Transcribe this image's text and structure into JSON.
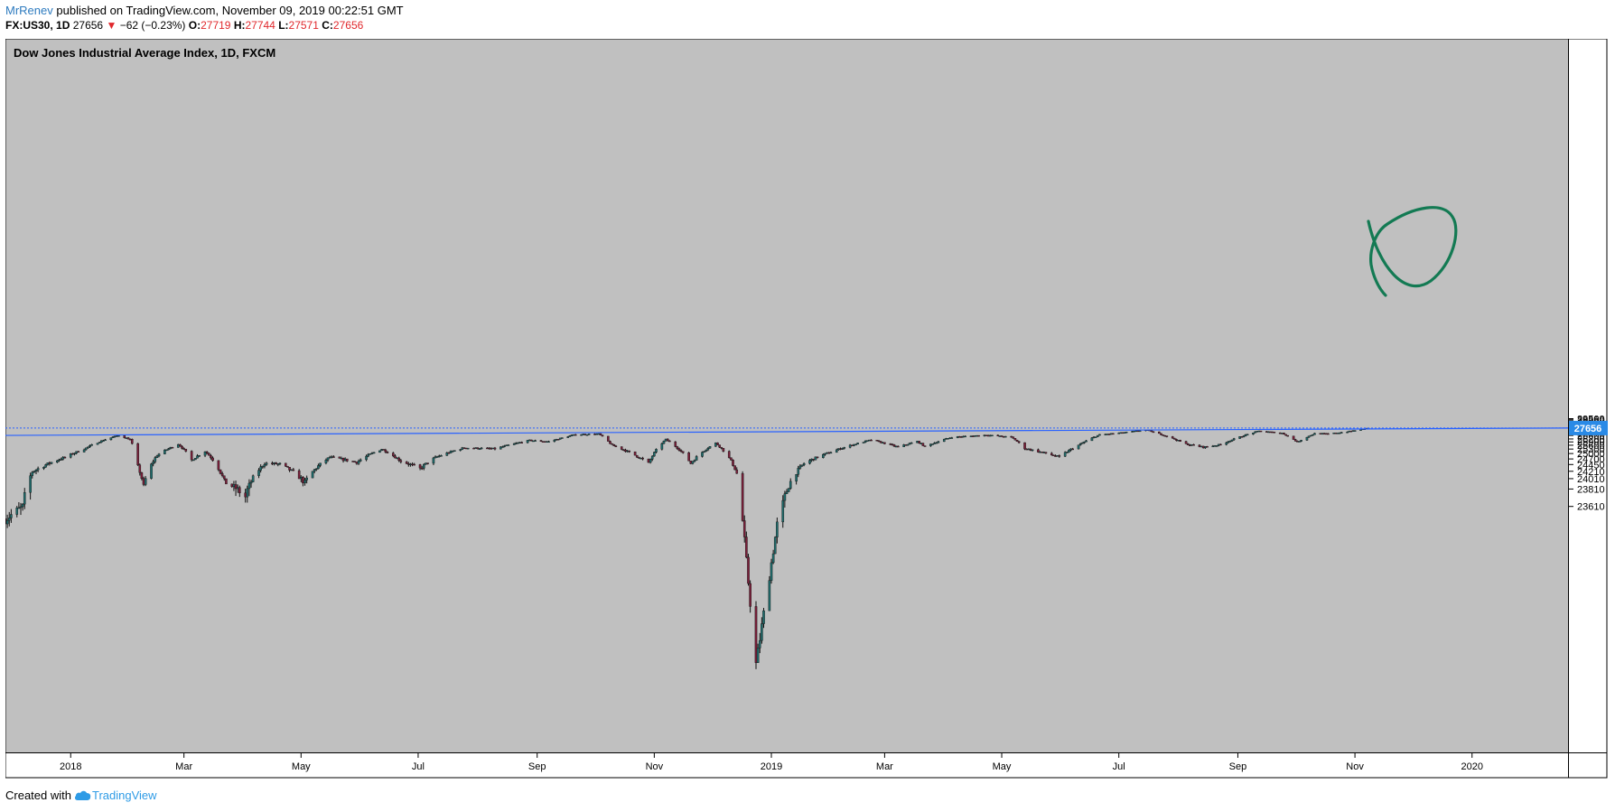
{
  "header": {
    "author": "MrRenev",
    "published_text": "published on TradingView.com, November 09, 2019 00:22:51 GMT",
    "symbol": "FX:US30",
    "interval": "1D",
    "last": "27656",
    "change": "−62 (−0.23%)",
    "o_label": "O:",
    "o": "27719",
    "h_label": "H:",
    "h": "27744",
    "l_label": "L:",
    "l": "27571",
    "c_label": "C:",
    "c": "27656"
  },
  "footer": {
    "created_with": "Created with",
    "brand": "TradingView"
  },
  "colors": {
    "plot_bg": "#c0c0c0",
    "trendline": "#2962ff",
    "price_line": "#2962ff",
    "annotation": "#137a53",
    "candle_up": "#1f6b6b",
    "candle_down": "#7a1f3a",
    "price_label_bg": "#2a8ae6"
  },
  "chart_data": {
    "type": "candlestick",
    "title": "Dow Jones Industrial Average Index, 1D, FXCM",
    "y_ticks": [
      23610,
      23810,
      24010,
      24210,
      24450,
      24700,
      25000,
      25300,
      25600,
      25900,
      26200,
      26600,
      27000,
      27400,
      27800,
      28200,
      28600,
      29000,
      29250,
      29500
    ],
    "x_ticks": [
      "2018",
      "Mar",
      "May",
      "Jul",
      "Sep",
      "Nov",
      "2019",
      "Mar",
      "May",
      "Jul",
      "Sep",
      "Nov",
      "2020"
    ],
    "x_tick_dates": [
      "2018-01-01",
      "2018-03-01",
      "2018-05-01",
      "2018-07-01",
      "2018-09-01",
      "2018-11-01",
      "2019-01-01",
      "2019-03-01",
      "2019-05-01",
      "2019-07-01",
      "2019-09-01",
      "2019-11-01",
      "2020-01-01"
    ],
    "x_range": [
      "2017-11-28",
      "2020-02-20"
    ],
    "last_price": 27656,
    "trendline": [
      {
        "date": "2017-11-28",
        "value": 26610
      },
      {
        "date": "2018-01-26",
        "value": 26700
      },
      {
        "date": "2019-07-15",
        "value": 27400
      },
      {
        "date": "2020-02-20",
        "value": 27665
      }
    ],
    "price_path": [
      [
        "2017-11-28",
        23470
      ],
      [
        "2017-12-07",
        23600
      ],
      [
        "2017-12-12",
        24200
      ],
      [
        "2017-12-29",
        24790
      ],
      [
        "2018-01-08",
        25300
      ],
      [
        "2018-01-17",
        26000
      ],
      [
        "2018-01-26",
        26620
      ],
      [
        "2018-02-01",
        26150
      ],
      [
        "2018-02-05",
        24380
      ],
      [
        "2018-02-08",
        23850
      ],
      [
        "2018-02-15",
        24900
      ],
      [
        "2018-02-26",
        25700
      ],
      [
        "2018-03-05",
        24650
      ],
      [
        "2018-03-12",
        25150
      ],
      [
        "2018-03-22",
        23950
      ],
      [
        "2018-04-02",
        23720
      ],
      [
        "2018-04-12",
        24500
      ],
      [
        "2018-04-20",
        24470
      ],
      [
        "2018-05-03",
        23930
      ],
      [
        "2018-05-16",
        24800
      ],
      [
        "2018-05-30",
        24550
      ],
      [
        "2018-06-12",
        25300
      ],
      [
        "2018-06-22",
        24600
      ],
      [
        "2018-07-02",
        24300
      ],
      [
        "2018-07-10",
        24780
      ],
      [
        "2018-07-25",
        25400
      ],
      [
        "2018-08-10",
        25320
      ],
      [
        "2018-08-28",
        26050
      ],
      [
        "2018-09-07",
        25930
      ],
      [
        "2018-09-21",
        26720
      ],
      [
        "2018-10-03",
        26800
      ],
      [
        "2018-10-10",
        25600
      ],
      [
        "2018-10-29",
        24500
      ],
      [
        "2018-11-07",
        26150
      ],
      [
        "2018-11-20",
        24500
      ],
      [
        "2018-12-03",
        25800
      ],
      [
        "2018-12-14",
        24150
      ],
      [
        "2018-12-24",
        21800
      ],
      [
        "2019-01-04",
        23400
      ],
      [
        "2019-01-18",
        24500
      ],
      [
        "2019-02-01",
        25100
      ],
      [
        "2019-02-22",
        26100
      ],
      [
        "2019-03-08",
        25450
      ],
      [
        "2019-03-18",
        25950
      ],
      [
        "2019-03-22",
        25500
      ],
      [
        "2019-04-05",
        26400
      ],
      [
        "2019-04-23",
        26650
      ],
      [
        "2019-05-06",
        26400
      ],
      [
        "2019-05-13",
        25350
      ],
      [
        "2019-05-31",
        24800
      ],
      [
        "2019-06-10",
        25600
      ],
      [
        "2019-06-21",
        26700
      ],
      [
        "2019-07-03",
        26950
      ],
      [
        "2019-07-15",
        27380
      ],
      [
        "2019-08-05",
        25700
      ],
      [
        "2019-08-14",
        25450
      ],
      [
        "2019-08-23",
        25650
      ],
      [
        "2019-09-12",
        27200
      ],
      [
        "2019-09-24",
        26900
      ],
      [
        "2019-10-02",
        25900
      ],
      [
        "2019-10-11",
        26850
      ],
      [
        "2019-10-18",
        26800
      ],
      [
        "2019-10-28",
        27100
      ],
      [
        "2019-11-08",
        27656
      ]
    ]
  }
}
